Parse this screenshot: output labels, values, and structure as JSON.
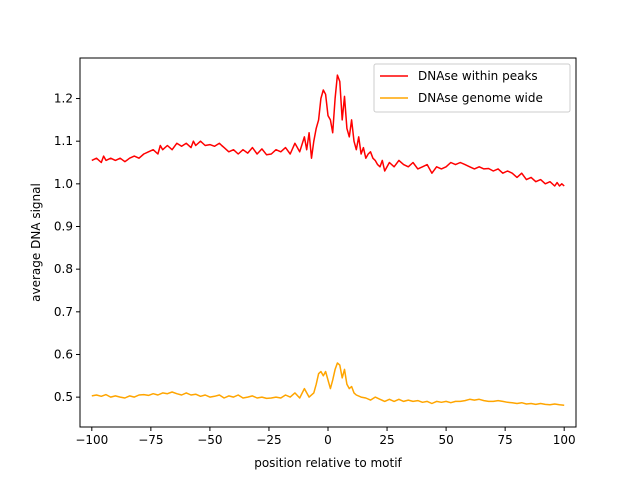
{
  "chart_data": {
    "type": "line",
    "xlabel": "position relative to motif",
    "ylabel": "average DNA signal",
    "xlim": [
      -105,
      105
    ],
    "ylim": [
      0.43,
      1.295
    ],
    "xticks": [
      -100,
      -75,
      -50,
      -25,
      0,
      25,
      50,
      75,
      100
    ],
    "xtick_labels": [
      "−100",
      "−75",
      "−50",
      "−25",
      "0",
      "25",
      "50",
      "75",
      "100"
    ],
    "yticks": [
      0.5,
      0.6,
      0.7,
      0.8,
      0.9,
      1.0,
      1.1,
      1.2
    ],
    "ytick_labels": [
      "0.5",
      "0.6",
      "0.7",
      "0.8",
      "0.9",
      "1.0",
      "1.1",
      "1.2"
    ],
    "grid": false,
    "legend_position": "top-right",
    "series": [
      {
        "name": "DNAse within peaks",
        "color": "#ff0000",
        "x": [
          -100,
          -98,
          -96,
          -95,
          -94,
          -92,
          -90,
          -88,
          -86,
          -84,
          -82,
          -80,
          -78,
          -76,
          -74,
          -72,
          -71,
          -70,
          -68,
          -66,
          -64,
          -62,
          -60,
          -58,
          -57,
          -56,
          -54,
          -52,
          -50,
          -48,
          -46,
          -45,
          -44,
          -42,
          -40,
          -38,
          -36,
          -34,
          -32,
          -30,
          -28,
          -26,
          -24,
          -22,
          -20,
          -18,
          -16,
          -14,
          -12,
          -10,
          -9,
          -8,
          -7,
          -6,
          -5,
          -4,
          -3,
          -2,
          -1,
          0,
          1,
          2,
          3,
          4,
          5,
          6,
          7,
          8,
          9,
          10,
          11,
          12,
          13,
          14,
          15,
          16,
          17,
          18,
          19,
          20,
          21,
          22,
          23,
          24,
          26,
          28,
          30,
          32,
          34,
          36,
          38,
          40,
          42,
          44,
          46,
          48,
          50,
          52,
          54,
          56,
          58,
          60,
          62,
          64,
          66,
          68,
          70,
          72,
          74,
          76,
          78,
          80,
          82,
          84,
          86,
          88,
          90,
          92,
          94,
          96,
          97,
          98,
          99,
          100
        ],
        "y": [
          1.055,
          1.06,
          1.05,
          1.065,
          1.055,
          1.06,
          1.055,
          1.06,
          1.052,
          1.06,
          1.065,
          1.06,
          1.07,
          1.075,
          1.08,
          1.07,
          1.09,
          1.08,
          1.09,
          1.08,
          1.095,
          1.088,
          1.095,
          1.085,
          1.1,
          1.09,
          1.1,
          1.09,
          1.092,
          1.088,
          1.095,
          1.09,
          1.085,
          1.075,
          1.08,
          1.07,
          1.08,
          1.072,
          1.085,
          1.07,
          1.082,
          1.068,
          1.07,
          1.08,
          1.075,
          1.085,
          1.07,
          1.095,
          1.075,
          1.11,
          1.08,
          1.12,
          1.06,
          1.1,
          1.13,
          1.15,
          1.2,
          1.22,
          1.21,
          1.16,
          1.15,
          1.12,
          1.2,
          1.255,
          1.24,
          1.15,
          1.205,
          1.13,
          1.11,
          1.15,
          1.1,
          1.08,
          1.11,
          1.07,
          1.085,
          1.06,
          1.07,
          1.075,
          1.06,
          1.055,
          1.045,
          1.04,
          1.055,
          1.03,
          1.05,
          1.04,
          1.055,
          1.045,
          1.04,
          1.05,
          1.035,
          1.04,
          1.045,
          1.025,
          1.04,
          1.035,
          1.04,
          1.05,
          1.045,
          1.05,
          1.045,
          1.04,
          1.035,
          1.04,
          1.035,
          1.036,
          1.03,
          1.035,
          1.025,
          1.03,
          1.025,
          1.015,
          1.025,
          1.01,
          1.015,
          1.005,
          1.01,
          1.0,
          1.005,
          0.995,
          1.003,
          0.995,
          1.0,
          0.995
        ]
      },
      {
        "name": "DNAse genome wide",
        "color": "#ffa500",
        "x": [
          -100,
          -98,
          -96,
          -94,
          -92,
          -90,
          -88,
          -86,
          -84,
          -82,
          -80,
          -78,
          -76,
          -74,
          -72,
          -70,
          -68,
          -66,
          -64,
          -62,
          -60,
          -58,
          -56,
          -54,
          -52,
          -50,
          -48,
          -46,
          -44,
          -42,
          -40,
          -38,
          -36,
          -34,
          -32,
          -30,
          -28,
          -26,
          -24,
          -22,
          -20,
          -18,
          -16,
          -14,
          -12,
          -10,
          -8,
          -6,
          -5,
          -4,
          -3,
          -2,
          -1,
          0,
          1,
          2,
          3,
          4,
          5,
          6,
          7,
          8,
          9,
          10,
          11,
          12,
          14,
          16,
          18,
          20,
          22,
          24,
          26,
          28,
          30,
          32,
          34,
          36,
          38,
          40,
          42,
          44,
          46,
          48,
          50,
          52,
          54,
          56,
          58,
          60,
          62,
          64,
          66,
          68,
          70,
          72,
          74,
          76,
          78,
          80,
          82,
          84,
          86,
          88,
          90,
          92,
          94,
          96,
          98,
          100
        ],
        "y": [
          0.503,
          0.505,
          0.502,
          0.506,
          0.5,
          0.503,
          0.5,
          0.498,
          0.503,
          0.5,
          0.505,
          0.506,
          0.504,
          0.508,
          0.505,
          0.51,
          0.508,
          0.512,
          0.508,
          0.505,
          0.51,
          0.505,
          0.507,
          0.502,
          0.505,
          0.5,
          0.502,
          0.505,
          0.498,
          0.503,
          0.5,
          0.505,
          0.498,
          0.5,
          0.503,
          0.498,
          0.5,
          0.497,
          0.498,
          0.5,
          0.498,
          0.505,
          0.5,
          0.51,
          0.498,
          0.52,
          0.5,
          0.51,
          0.53,
          0.555,
          0.56,
          0.55,
          0.56,
          0.54,
          0.52,
          0.54,
          0.565,
          0.58,
          0.575,
          0.545,
          0.565,
          0.53,
          0.52,
          0.525,
          0.51,
          0.505,
          0.5,
          0.498,
          0.493,
          0.5,
          0.495,
          0.49,
          0.495,
          0.49,
          0.495,
          0.49,
          0.493,
          0.49,
          0.492,
          0.488,
          0.49,
          0.485,
          0.49,
          0.488,
          0.49,
          0.487,
          0.49,
          0.49,
          0.492,
          0.495,
          0.493,
          0.495,
          0.492,
          0.49,
          0.49,
          0.492,
          0.49,
          0.488,
          0.487,
          0.485,
          0.487,
          0.484,
          0.485,
          0.483,
          0.485,
          0.483,
          0.482,
          0.484,
          0.482,
          0.481
        ]
      }
    ]
  }
}
